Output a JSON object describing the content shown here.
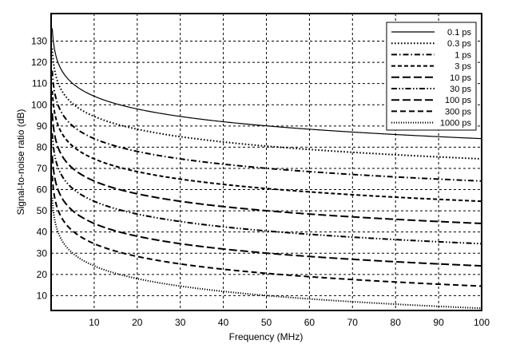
{
  "chart_data": {
    "type": "line",
    "title": "",
    "xlabel": "Frequency (MHz)",
    "ylabel": "Signal-to-noise ratio (dB)",
    "xlim": [
      0,
      100
    ],
    "ylim": [
      3,
      143
    ],
    "xticks": [
      10,
      20,
      30,
      40,
      50,
      60,
      70,
      80,
      90,
      100
    ],
    "yticks": [
      10,
      20,
      30,
      40,
      50,
      60,
      70,
      80,
      90,
      100,
      110,
      120,
      130
    ],
    "grid": true,
    "legend_position": "top-right",
    "series": [
      {
        "name": "0.1 ps",
        "jitter_ps": 0.1,
        "style": "solid",
        "x": [
          1,
          5,
          10,
          20,
          30,
          40,
          50,
          60,
          70,
          80,
          90,
          100
        ],
        "y": [
          124.0,
          110.0,
          104.0,
          98.0,
          94.5,
          92.0,
          90.0,
          88.4,
          87.1,
          85.9,
          84.9,
          84.0
        ]
      },
      {
        "name": "0.3 ps",
        "jitter_ps": 0.3,
        "style": "dotted",
        "x": [
          1,
          5,
          10,
          20,
          30,
          40,
          50,
          60,
          70,
          80,
          90,
          100
        ],
        "y": [
          114.5,
          100.5,
          94.5,
          88.5,
          85.0,
          82.5,
          80.5,
          78.9,
          77.6,
          76.4,
          75.4,
          74.5
        ]
      },
      {
        "name": "1 ps",
        "jitter_ps": 1,
        "style": "dash-dot",
        "x": [
          1,
          5,
          10,
          20,
          30,
          40,
          50,
          60,
          70,
          80,
          90,
          100
        ],
        "y": [
          104.0,
          90.0,
          84.0,
          78.0,
          74.5,
          72.0,
          70.0,
          68.4,
          67.1,
          65.9,
          64.9,
          64.0
        ]
      },
      {
        "name": "3 ps",
        "jitter_ps": 3,
        "style": "short-dash",
        "x": [
          1,
          5,
          10,
          20,
          30,
          40,
          50,
          60,
          70,
          80,
          90,
          100
        ],
        "y": [
          94.5,
          80.5,
          74.5,
          68.5,
          65.0,
          62.5,
          60.5,
          58.9,
          57.6,
          56.4,
          55.4,
          54.5
        ]
      },
      {
        "name": "10 ps",
        "jitter_ps": 10,
        "style": "long-dash",
        "x": [
          1,
          5,
          10,
          20,
          30,
          40,
          50,
          60,
          70,
          80,
          90,
          100
        ],
        "y": [
          84.0,
          70.0,
          64.0,
          58.0,
          54.5,
          52.0,
          50.0,
          48.4,
          47.1,
          45.9,
          44.9,
          44.0
        ]
      },
      {
        "name": "30 ps",
        "jitter_ps": 30,
        "style": "dash-dot-dot",
        "x": [
          1,
          5,
          10,
          20,
          30,
          40,
          50,
          60,
          70,
          80,
          90,
          100
        ],
        "y": [
          74.5,
          60.5,
          54.5,
          48.5,
          45.0,
          42.5,
          40.5,
          38.9,
          37.6,
          36.4,
          35.4,
          34.5
        ]
      },
      {
        "name": "100 ps",
        "jitter_ps": 100,
        "style": "long-dash",
        "x": [
          1,
          5,
          10,
          20,
          30,
          40,
          50,
          60,
          70,
          80,
          90,
          100
        ],
        "y": [
          64.0,
          50.0,
          44.0,
          38.0,
          34.5,
          32.0,
          30.0,
          28.4,
          27.1,
          25.9,
          24.9,
          24.0
        ]
      },
      {
        "name": "300 ps",
        "jitter_ps": 300,
        "style": "medium-dash",
        "x": [
          1,
          5,
          10,
          20,
          30,
          40,
          50,
          60,
          70,
          80,
          90,
          100
        ],
        "y": [
          54.5,
          40.5,
          34.5,
          28.5,
          25.0,
          22.5,
          20.5,
          18.9,
          17.6,
          16.4,
          15.4,
          14.5
        ]
      },
      {
        "name": "1000 ps",
        "jitter_ps": 1000,
        "style": "dense-dotted",
        "x": [
          1,
          5,
          10,
          20,
          30,
          40,
          50,
          60,
          70,
          80,
          90,
          100
        ],
        "y": [
          44.0,
          30.0,
          24.0,
          18.0,
          14.5,
          12.0,
          10.0,
          8.4,
          7.1,
          5.9,
          4.9,
          4.0
        ]
      }
    ]
  }
}
